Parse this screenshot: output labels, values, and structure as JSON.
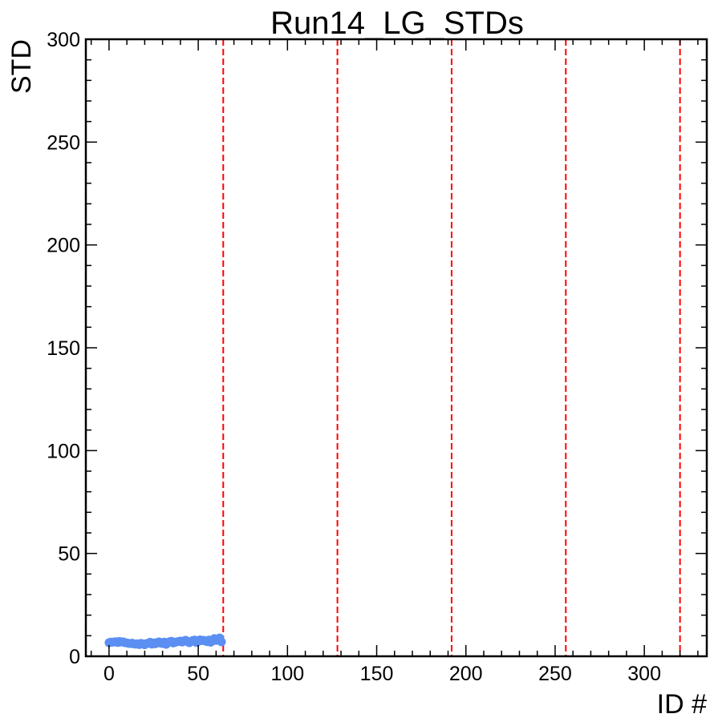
{
  "chart_data": {
    "type": "scatter",
    "title": "Run14_LG_STDs",
    "xlabel": "ID #",
    "ylabel": "STD",
    "xlim": [
      -13,
      335
    ],
    "ylim": [
      0,
      300
    ],
    "xticks": [
      0,
      50,
      100,
      150,
      200,
      250,
      300
    ],
    "yticks": [
      0,
      50,
      100,
      150,
      200,
      250,
      300
    ],
    "grid": false,
    "colors": {
      "points": "#5b8ff2",
      "vlines": "#ff0000",
      "axes": "#000000"
    },
    "series": [
      {
        "x": [
          0,
          1,
          2,
          3,
          4,
          5,
          6,
          7,
          8,
          9,
          10,
          11,
          12,
          13,
          14,
          15,
          16,
          17,
          18,
          19,
          20,
          21,
          22,
          23,
          24,
          25,
          26,
          27,
          28,
          29,
          30,
          31,
          32,
          33,
          34,
          35,
          36,
          37,
          38,
          39,
          40,
          41,
          42,
          43,
          44,
          45,
          46,
          47,
          48,
          49,
          50,
          51,
          52,
          53,
          54,
          55,
          56,
          57,
          58,
          59,
          60,
          61,
          62,
          63
        ],
        "y": [
          6.6,
          6.9,
          6.8,
          7.0,
          7.1,
          6.7,
          7.2,
          6.9,
          7.0,
          6.6,
          6.5,
          6.3,
          6.2,
          6.4,
          6.0,
          5.9,
          6.1,
          5.7,
          6.3,
          6.0,
          5.6,
          6.2,
          6.4,
          6.8,
          5.9,
          6.5,
          6.1,
          6.7,
          7.0,
          6.4,
          6.2,
          6.9,
          5.8,
          6.6,
          7.1,
          7.3,
          6.5,
          6.8,
          7.0,
          7.2,
          7.4,
          6.9,
          7.5,
          7.8,
          7.1,
          6.6,
          7.2,
          7.7,
          7.9,
          6.7,
          7.3,
          8.0,
          7.6,
          7.8,
          7.4,
          7.1,
          7.9,
          6.8,
          7.5,
          8.6,
          7.7,
          8.3,
          8.9,
          7.0
        ]
      }
    ],
    "vlines": [
      64,
      128,
      192,
      256,
      320
    ]
  }
}
